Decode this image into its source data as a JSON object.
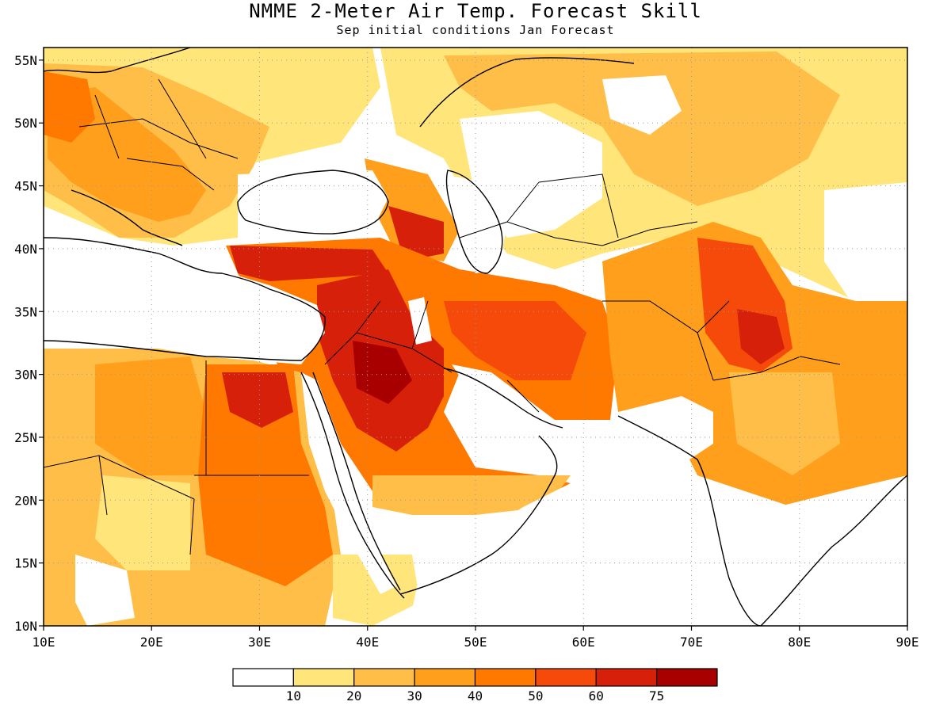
{
  "header": {
    "title": "NMME 2-Meter Air Temp. Forecast Skill",
    "subtitle": "Sep initial conditions  Jan Forecast"
  },
  "map": {
    "lon_range": [
      10,
      90
    ],
    "lat_range": [
      10,
      56
    ],
    "lon_ticks": [
      "10E",
      "20E",
      "30E",
      "40E",
      "50E",
      "60E",
      "70E",
      "80E",
      "90E"
    ],
    "lat_ticks": [
      "10N",
      "15N",
      "20N",
      "25N",
      "30N",
      "35N",
      "40N",
      "45N",
      "50N",
      "55N"
    ],
    "grid": true,
    "grid_style": "dotted"
  },
  "legend": {
    "labels": [
      "10",
      "20",
      "30",
      "40",
      "50",
      "60",
      "75"
    ],
    "colors": [
      "#ffffff",
      "#ffe57a",
      "#ffbe48",
      "#ff9f1c",
      "#ff7800",
      "#f54a0a",
      "#d7200a",
      "#a80000"
    ]
  }
}
